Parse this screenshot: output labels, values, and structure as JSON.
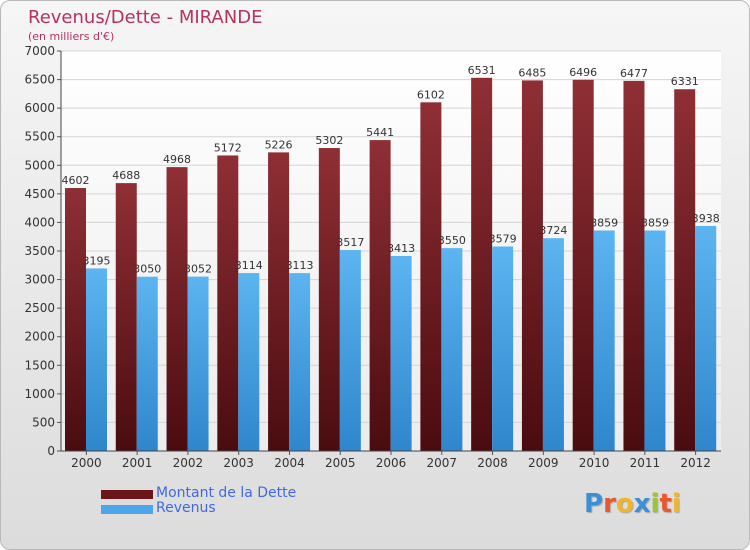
{
  "header": {
    "title": "Revenus/Dette - MIRANDE",
    "subtitle": "(en milliers d'€)"
  },
  "chart_data": {
    "type": "bar",
    "categories": [
      "2000",
      "2001",
      "2002",
      "2003",
      "2004",
      "2005",
      "2006",
      "2007",
      "2008",
      "2009",
      "2010",
      "2011",
      "2012"
    ],
    "series": [
      {
        "name": "Montant de la Dette",
        "color": "#7a1f24",
        "values": [
          4602,
          4688,
          4968,
          5172,
          5226,
          5302,
          5441,
          6102,
          6531,
          6485,
          6496,
          6477,
          6331
        ]
      },
      {
        "name": "Revenus",
        "color": "#4da6e8",
        "values": [
          3195,
          3050,
          3052,
          3114,
          3113,
          3517,
          3413,
          3550,
          3579,
          3724,
          3859,
          3859,
          3938
        ]
      }
    ],
    "yticks": [
      0,
      500,
      1000,
      1500,
      2000,
      2500,
      3000,
      3500,
      4000,
      4500,
      5000,
      5500,
      6000,
      6500,
      7000
    ],
    "ylim": [
      0,
      7000
    ],
    "grid": true,
    "legend_position": "bottom-left"
  },
  "logo": {
    "letters": [
      "P",
      "r",
      "o",
      "x",
      "i",
      "t",
      "i"
    ],
    "colors": [
      "#3b8fd6",
      "#e8582c",
      "#f2b52a",
      "#3b8fd6",
      "#9ac43c",
      "#e8582c",
      "#f2b52a"
    ]
  }
}
